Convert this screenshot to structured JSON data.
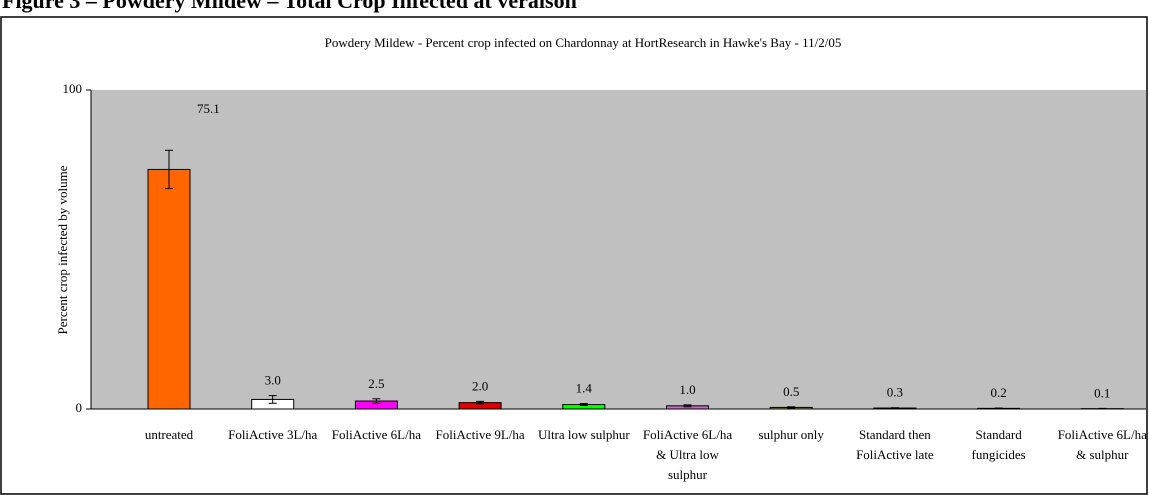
{
  "figure_caption": "Figure 3 – Powdery Mildew – Total Crop Infected at veraison",
  "chart_data": {
    "type": "bar",
    "title": "Powdery Mildew - Percent crop infected on Chardonnay at HortResearch in Hawke's Bay - 11/2/05",
    "y_label": "Percent crop infected by volume",
    "categories": [
      "untreated",
      "FoliActive 3L/ha",
      "FoliActive 6L/ha",
      "FoliActive 9L/ha",
      "Ultra low sulphur",
      "FoliActive 6L/ha & Ultra low sulphur",
      "sulphur only",
      "Standard then FoliActive late",
      "Standard fungicides",
      "FoliActive 6L/ha & sulphur"
    ],
    "values": [
      75.1,
      3,
      2.5,
      2,
      1.4,
      1,
      0.5,
      0.3,
      0.2,
      0.1
    ],
    "value_labels": [
      "75.1",
      "3.0",
      "2.5",
      "2.0",
      "1.4",
      "1.0",
      "0.5",
      "0.3",
      "0.2",
      "0.1"
    ],
    "errors": [
      6,
      1.2,
      0.7,
      0.4,
      0.3,
      0.3,
      0.2,
      0.1,
      0.1,
      0.1
    ],
    "colors": [
      "#ff6600",
      "#ffffff",
      "#ff00ff",
      "#e00000",
      "#00ff00",
      "#cc66cc",
      "#999933",
      "#666666",
      "#555555",
      "#444444"
    ],
    "ylim": [
      0,
      100
    ],
    "yticks": [
      0,
      100
    ]
  }
}
